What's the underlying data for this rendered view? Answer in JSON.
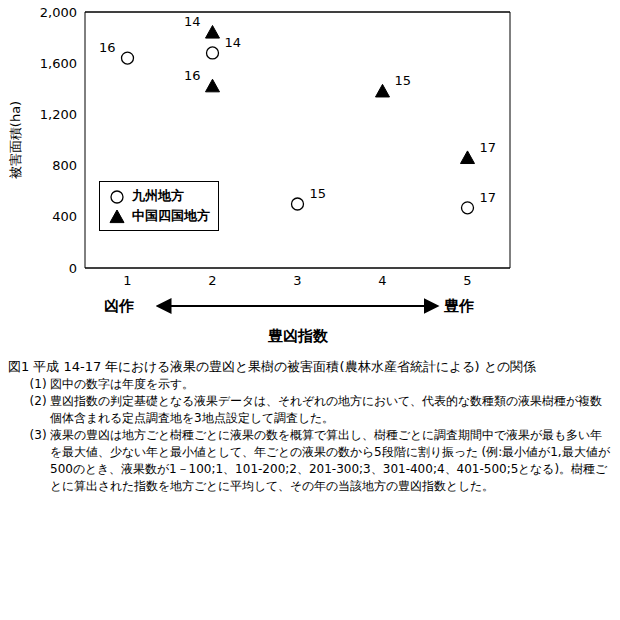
{
  "chart_data": {
    "type": "scatter",
    "x_label": "豊凶指数",
    "y_label": "被害面積(ha)",
    "x_end_labels": [
      "凶作",
      "豊作"
    ],
    "xlim": [
      0.5,
      5.5
    ],
    "xticks": [
      1,
      2,
      3,
      4,
      5
    ],
    "ylim": [
      0,
      2000
    ],
    "yticks": [
      0,
      {
        "value": 400,
        "label": "400"
      },
      {
        "value": 800,
        "label": "800"
      },
      {
        "value": 1200,
        "label": "1,200"
      },
      {
        "value": 1600,
        "label": "1,600"
      },
      {
        "value": 2000,
        "label": "2,000"
      }
    ],
    "grid": true,
    "legend": "lower left",
    "series": [
      {
        "name": "九州地方",
        "color": "#000000",
        "marker": "open_circle",
        "x": [
          1,
          2,
          3,
          5
        ],
        "values": [
          1640,
          1680,
          500,
          470
        ],
        "labels": [
          "16",
          "14",
          "15",
          "17"
        ]
      },
      {
        "name": "中国四国地方",
        "color": "#000000",
        "marker": "triangle",
        "x": [
          2,
          2,
          4,
          5
        ],
        "values": [
          1840,
          1420,
          1380,
          860
        ],
        "labels": [
          "14",
          "16",
          "15",
          "17"
        ]
      }
    ]
  },
  "caption": {
    "title": "図1 平成 14-17 年における液果の豊凶と果樹の被害面積(農林水産省統計による) との関係",
    "notes": [
      "(1) 図中の数字は年度を示す。",
      "(2) 豊凶指数の判定基礎となる液果データは、それぞれの地方において、代表的な数種類の液果樹種が複数個体含まれる定点調査地を3地点設定して調査した。",
      "(3) 液果の豊凶は地方ごと樹種ごとに液果の数を概算で算出し、樹種ごとに調査期間中で液果が最も多い年を最大値、少ない年と最小値として、年ごとの液果の数から5段階に割り振った (例:最小値が1,最大値が500のとき、液果数が1－100;1、101-200;2、201-300;3、301-400;4、401-500;5となる)。樹種ごとに算出された指数を地方ごとに平均して、その年の当該地方の豊凶指数とした。"
    ]
  }
}
